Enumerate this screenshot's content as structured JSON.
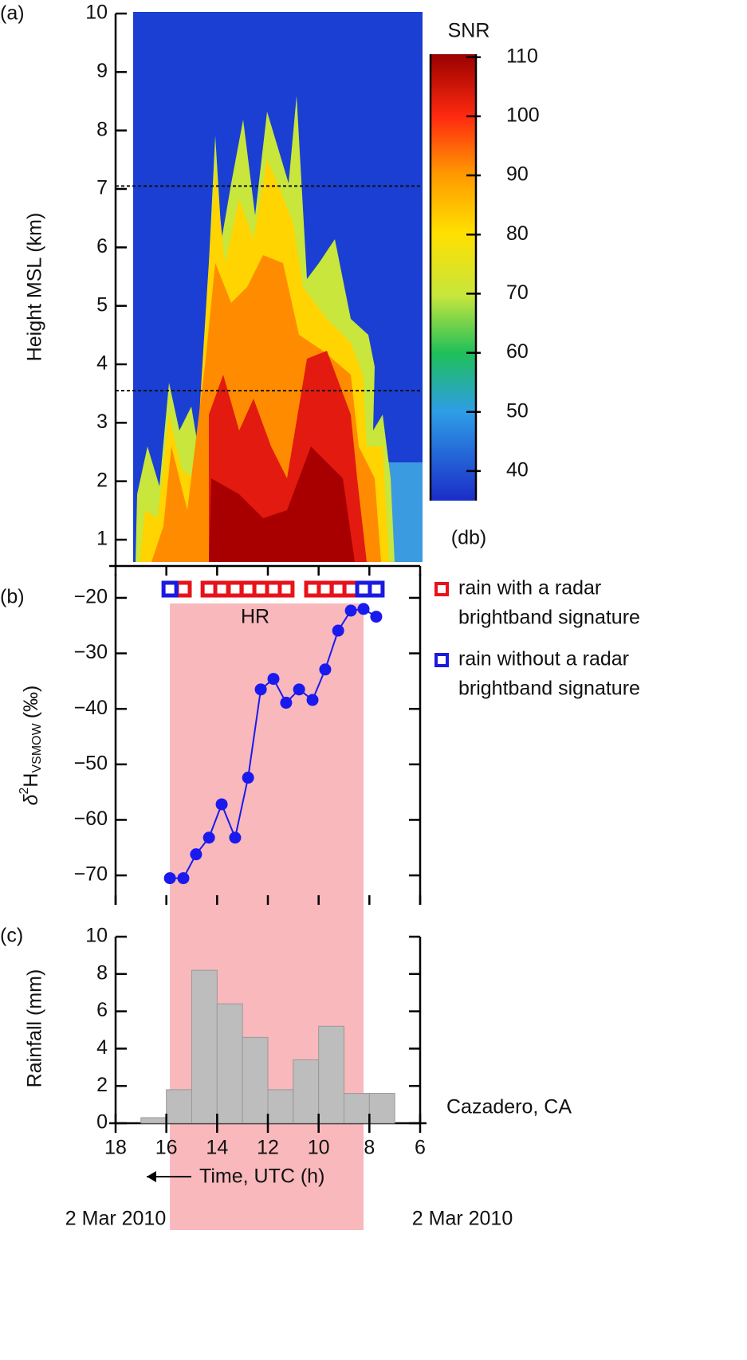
{
  "chart_data": [
    {
      "type": "heatmap",
      "panel_label": "(a)",
      "ylabel": "Height MSL (km)",
      "ylim": [
        0.55,
        10
      ],
      "yticks": [
        1,
        2,
        3,
        4,
        5,
        6,
        7,
        8,
        9,
        10
      ],
      "dashed_lines": [
        7.05,
        3.55
      ],
      "colorbar": {
        "title": "SNR",
        "unit": "(db)",
        "lim": [
          35,
          110.5
        ],
        "ticks": [
          40,
          50,
          60,
          70,
          80,
          90,
          100,
          110
        ]
      }
    },
    {
      "type": "line",
      "panel_label": "(b)",
      "ylabel": {
        "symbol": "δ",
        "sup": "2",
        "main": "H",
        "sub": "VSMOW",
        "unit": "(‰)"
      },
      "annotation": "HR",
      "x": [
        15.86,
        15.33,
        14.83,
        14.32,
        13.82,
        13.29,
        12.78,
        12.28,
        11.78,
        11.28,
        10.77,
        10.24,
        9.74,
        9.23,
        8.73,
        8.23,
        7.73
      ],
      "values": [
        -70.5,
        -70.5,
        -66.2,
        -63.2,
        -57.2,
        -63.2,
        -52.4,
        -36.5,
        -34.6,
        -38.9,
        -36.5,
        -38.4,
        -32.9,
        -25.9,
        -22.3,
        -22.0,
        -23.4
      ],
      "color": "#1a1aee",
      "ylim": [
        -75.3,
        -15.7
      ],
      "yticks": [
        {
          "value": -20,
          "label": "−20"
        },
        {
          "value": -30,
          "label": "−30"
        },
        {
          "value": -40,
          "label": "−40"
        },
        {
          "value": -50,
          "label": "−50"
        },
        {
          "value": -60,
          "label": "−60"
        },
        {
          "value": -70,
          "label": "−70"
        }
      ],
      "markers": [
        {
          "name": [
            "rain with a radar",
            "brightband signature"
          ],
          "color": "#e8121a",
          "x": [
            15.33,
            14.32,
            13.82,
            13.29,
            12.78,
            12.28,
            11.78,
            11.28,
            10.24,
            9.74,
            9.23,
            8.73
          ]
        },
        {
          "name": [
            "rain without a radar",
            "brightband signature"
          ],
          "color": "#1a1ae0",
          "x": [
            15.86,
            8.23,
            7.73
          ]
        }
      ],
      "shaded_region": {
        "xlim": [
          15.86,
          8.23
        ],
        "color": "#f8b8bc"
      }
    },
    {
      "type": "histogram",
      "panel_label": "(c)",
      "ylabel": "Rainfall (mm)",
      "annotation": "Cazadero, CA",
      "bins": [
        17,
        16,
        15,
        14,
        13,
        12,
        11,
        10,
        9,
        8,
        7
      ],
      "values": [
        0.3,
        1.8,
        8.2,
        6.4,
        4.6,
        1.8,
        3.4,
        5.2,
        1.6,
        1.6
      ],
      "color": "#bdbdbd",
      "ylim": [
        0,
        10
      ],
      "yticks": [
        0,
        2,
        4,
        6,
        8,
        10
      ],
      "xlim": [
        18,
        6
      ],
      "xticks": [
        18,
        16,
        14,
        12,
        10,
        8,
        6
      ],
      "xlabel": "Time, UTC (h)",
      "date_labels": [
        "2 Mar 2010",
        "2 Mar 2010"
      ]
    }
  ]
}
